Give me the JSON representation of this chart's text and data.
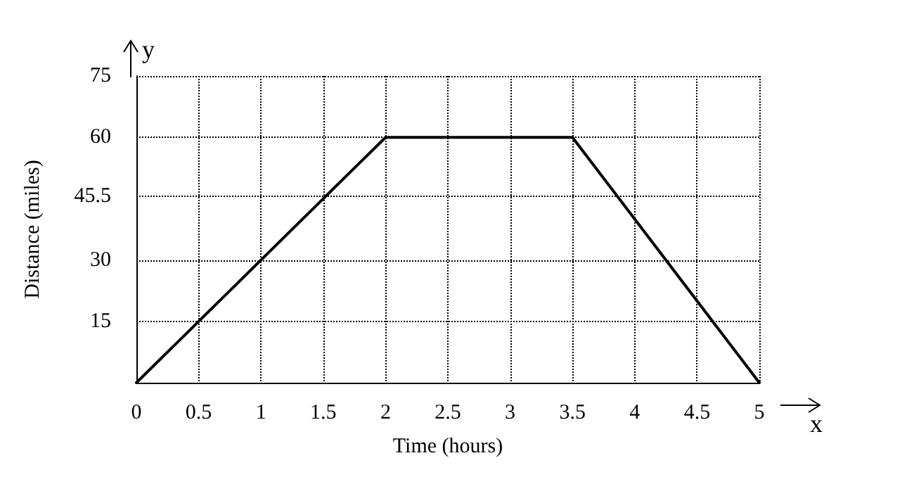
{
  "chart_data": {
    "type": "line",
    "xlabel": "Time (hours)",
    "ylabel": "Distance (miles)",
    "x": [
      0,
      2,
      3.5,
      5
    ],
    "series": [
      {
        "color": "#000000",
        "values": [
          0,
          60,
          60,
          0
        ]
      }
    ],
    "xlim": [
      0,
      5
    ],
    "xticks": [
      0,
      0.5,
      1,
      1.5,
      2,
      2.5,
      3,
      3.5,
      4,
      4.5,
      5
    ],
    "ylim": [
      0,
      75
    ],
    "yticks": [
      {
        "value": 0,
        "label": null
      },
      15,
      30,
      45.5,
      60,
      75
    ],
    "grid": true,
    "marker": "none",
    "line_style": "solid",
    "annotations": [
      "x",
      "y"
    ]
  }
}
